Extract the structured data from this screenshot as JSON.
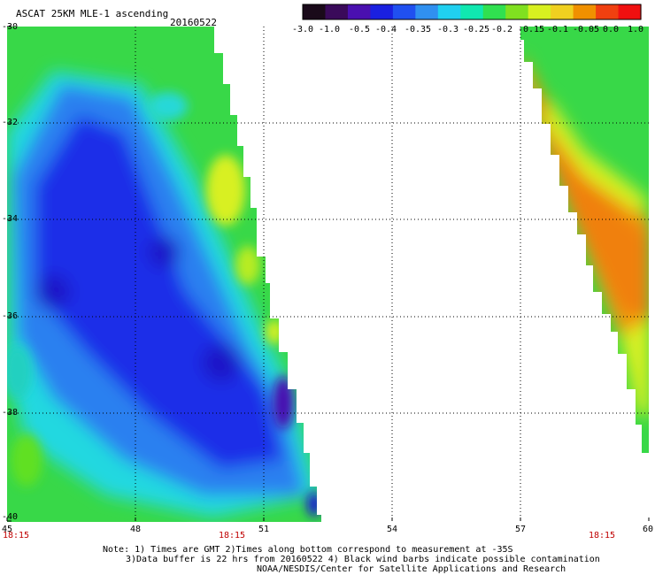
{
  "header": {
    "title": "ASCAT 25KM MLE-1 ascending",
    "date": "20160522"
  },
  "colorbar": {
    "labels": [
      "-3.0",
      "-1.0",
      "-0.5",
      "-0.4",
      "-0.35",
      "-0.3",
      "-0.25",
      "-0.2",
      "-0.15",
      "-0.1",
      "-0.05",
      "0.0",
      "1.0"
    ],
    "colors": [
      "#1a0a1a",
      "#3a0a5a",
      "#4a10b0",
      "#1a20e0",
      "#2050f0",
      "#3090f0",
      "#20d0f0",
      "#10e8b0",
      "#30e050",
      "#80e020",
      "#d8f020",
      "#f0d020",
      "#f09000",
      "#f04010",
      "#f01010"
    ]
  },
  "map": {
    "lat_labels": [
      "-30",
      "-32",
      "-34",
      "-36",
      "-38",
      "-40"
    ],
    "lon_labels": [
      "45",
      "48",
      "51",
      "54",
      "57",
      "60"
    ],
    "time_labels": [
      "18:15",
      "18:15",
      "18:15"
    ]
  },
  "notes": {
    "line1": "Note: 1) Times are GMT 2)Times along bottom correspond to measurement at -35S",
    "line2": "3)Data buffer is 22 hrs from 20160522 4) Black wind barbs indicate possible contamination",
    "line3": "NOAA/NESDIS/Center for Satellite Applications and Research"
  }
}
